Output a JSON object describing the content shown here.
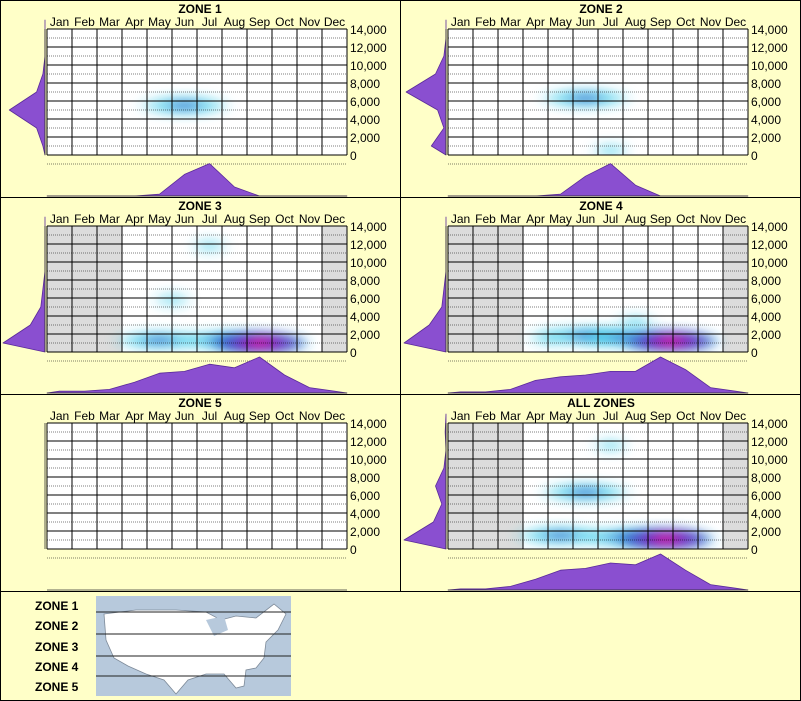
{
  "months": [
    "Jan",
    "Feb",
    "Mar",
    "Apr",
    "May",
    "Jun",
    "Jul",
    "Aug",
    "Sep",
    "Oct",
    "Nov",
    "Dec"
  ],
  "y_ticks": [
    "14,000",
    "12,000",
    "10,000",
    "8,000",
    "6,000",
    "4,000",
    "2,000",
    "0"
  ],
  "colors": {
    "background": "#ffffc8",
    "density": "#8a4fd0",
    "shade": "#dcdcdc",
    "hot": "#ff1a8c",
    "cool": "#30c8e8",
    "mid": "#2040c0"
  },
  "chart_data": [
    {
      "type": "heatmap",
      "title": "ZONE 1",
      "blobs": [
        {
          "month": 6.0,
          "elev": 5500,
          "intensity": 0.35
        }
      ],
      "month_density": [
        0,
        0,
        0,
        0,
        0.05,
        0.6,
        0.9,
        0.25,
        0,
        0,
        0,
        0
      ],
      "elev_density": [
        0.05,
        0.2,
        0.85,
        0.2,
        0.05,
        0,
        0,
        0
      ]
    },
    {
      "type": "heatmap",
      "title": "ZONE 2",
      "blobs": [
        {
          "month": 6.0,
          "elev": 6300,
          "intensity": 0.4
        },
        {
          "month": 7.0,
          "elev": 500,
          "intensity": 0.15
        }
      ],
      "month_density": [
        0,
        0,
        0,
        0,
        0.05,
        0.55,
        0.9,
        0.3,
        0,
        0,
        0,
        0
      ],
      "elev_density": [
        0.35,
        0.05,
        0.2,
        0.95,
        0.25,
        0.05,
        0,
        0
      ]
    },
    {
      "type": "heatmap",
      "title": "ZONE 3",
      "shaded_months": [
        1,
        2,
        3,
        12
      ],
      "blobs": [
        {
          "month": 5.5,
          "elev": 5800,
          "intensity": 0.15
        },
        {
          "month": 7.0,
          "elev": 11800,
          "intensity": 0.12
        },
        {
          "month": 5.0,
          "elev": 1300,
          "intensity": 0.4
        },
        {
          "month": 7.5,
          "elev": 1300,
          "intensity": 0.55
        },
        {
          "month": 9.0,
          "elev": 1000,
          "intensity": 0.98
        }
      ],
      "month_density": [
        0.05,
        0.05,
        0.1,
        0.3,
        0.55,
        0.6,
        0.8,
        0.7,
        1.0,
        0.5,
        0.15,
        0.05
      ],
      "elev_density": [
        1.0,
        0.35,
        0.1,
        0.05,
        0,
        0,
        0,
        0
      ]
    },
    {
      "type": "heatmap",
      "title": "ZONE 4",
      "shaded_months": [
        1,
        2,
        3,
        12
      ],
      "blobs": [
        {
          "month": 4.5,
          "elev": 1600,
          "intensity": 0.3
        },
        {
          "month": 6.0,
          "elev": 1800,
          "intensity": 0.35
        },
        {
          "month": 7.5,
          "elev": 1600,
          "intensity": 0.5
        },
        {
          "month": 8.0,
          "elev": 3300,
          "intensity": 0.2
        },
        {
          "month": 9.4,
          "elev": 1200,
          "intensity": 0.98
        }
      ],
      "month_density": [
        0.03,
        0.03,
        0.1,
        0.35,
        0.45,
        0.5,
        0.6,
        0.6,
        1.0,
        0.65,
        0.15,
        0.05
      ],
      "elev_density": [
        1.0,
        0.4,
        0.1,
        0.05,
        0,
        0,
        0,
        0
      ]
    },
    {
      "type": "heatmap",
      "title": "ZONE 5",
      "blobs": [],
      "month_density": [],
      "elev_density": []
    },
    {
      "type": "heatmap",
      "title": "ALL ZONES",
      "shaded_months": [
        1,
        2,
        3,
        12
      ],
      "blobs": [
        {
          "month": 6.0,
          "elev": 6300,
          "intensity": 0.35
        },
        {
          "month": 7.0,
          "elev": 11500,
          "intensity": 0.08
        },
        {
          "month": 5.0,
          "elev": 1500,
          "intensity": 0.35
        },
        {
          "month": 7.5,
          "elev": 1300,
          "intensity": 0.5
        },
        {
          "month": 9.2,
          "elev": 1100,
          "intensity": 0.98
        }
      ],
      "month_density": [
        0.03,
        0.03,
        0.1,
        0.3,
        0.55,
        0.6,
        0.75,
        0.7,
        1.0,
        0.55,
        0.15,
        0.05
      ],
      "elev_density": [
        1.0,
        0.3,
        0.1,
        0.25,
        0.05,
        0,
        0.02,
        0
      ]
    }
  ],
  "legend": {
    "zones": [
      "ZONE 1",
      "ZONE 2",
      "ZONE 3",
      "ZONE 4",
      "ZONE 5"
    ]
  }
}
